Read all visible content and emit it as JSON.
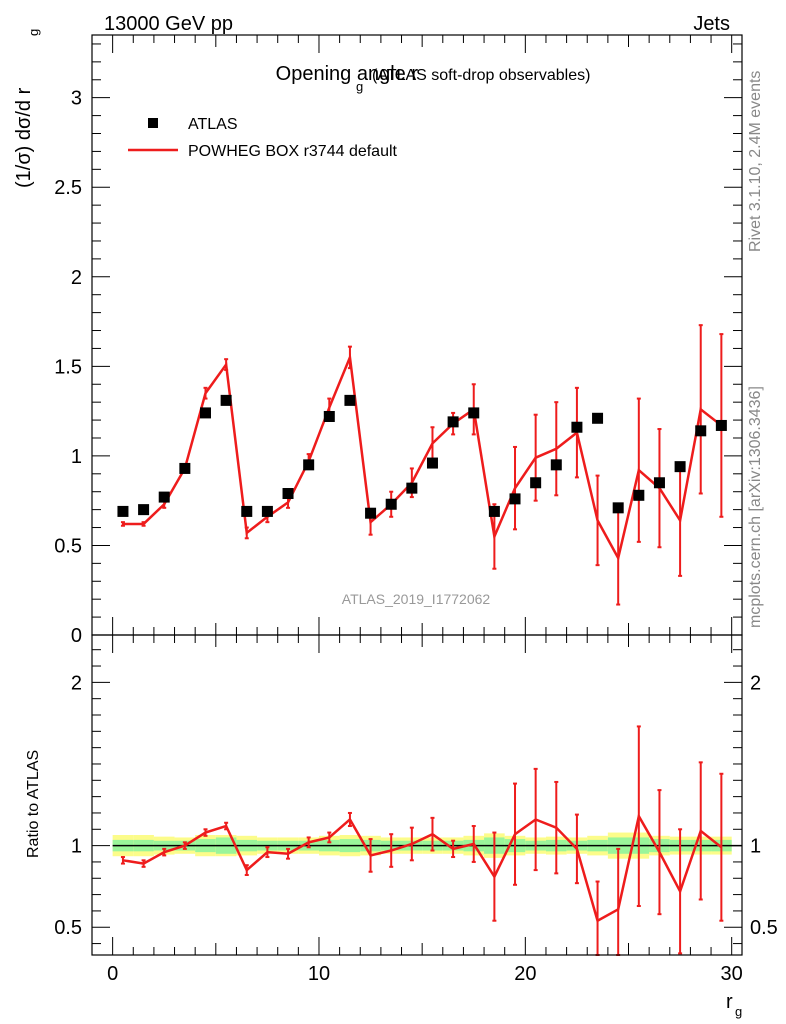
{
  "header": {
    "energy_label": "13000 GeV pp",
    "process_label": "Jets"
  },
  "side_labels": {
    "rivet": "Rivet 3.1.10,  2.4M events",
    "mcplots": "mcplots.cern.ch [arXiv:1306.3436]"
  },
  "chart_data": [
    {
      "type": "scatter",
      "title": "Opening angle r",
      "title_subscript": "g",
      "subtitle": "(ATLAS soft-drop observables)",
      "analysis_label": "ATLAS_2019_I1772062",
      "ylabel": "(1/σ) dσ/d r",
      "ylabel_subscript": "g",
      "xlim": [
        -1,
        30.5
      ],
      "ylim": [
        0,
        3.35
      ],
      "yticks": [
        {
          "value": 0,
          "label": "0"
        },
        {
          "value": 0.5,
          "label": "0.5"
        },
        {
          "value": 1,
          "label": "1"
        },
        {
          "value": 1.5,
          "label": "1.5"
        },
        {
          "value": 2,
          "label": "2"
        },
        {
          "value": 2.5,
          "label": "2.5"
        },
        {
          "value": 3,
          "label": "3"
        }
      ],
      "legend_position": "top-left",
      "series": [
        {
          "name": "ATLAS",
          "style": "markers",
          "color": "#000000",
          "x": [
            0.5,
            1.5,
            2.5,
            3.5,
            4.5,
            5.5,
            6.5,
            7.5,
            8.5,
            9.5,
            10.5,
            11.5,
            12.5,
            13.5,
            14.5,
            15.5,
            16.5,
            17.5,
            18.5,
            19.5,
            20.5,
            21.5,
            22.5,
            23.5,
            24.5,
            25.5,
            26.5,
            27.5,
            28.5,
            29.5
          ],
          "y": [
            0.69,
            0.7,
            0.77,
            0.93,
            1.24,
            1.31,
            0.69,
            0.69,
            0.79,
            0.95,
            1.22,
            1.31,
            0.68,
            0.73,
            0.82,
            0.96,
            1.19,
            1.24,
            0.69,
            0.76,
            0.85,
            0.95,
            1.16,
            1.21,
            0.71,
            0.78,
            0.85,
            0.94,
            1.14,
            1.17
          ]
        },
        {
          "name": "POWHEG BOX r3744 default",
          "style": "line",
          "color": "#ee1c1c",
          "x": [
            0.5,
            1.5,
            2.5,
            3.5,
            4.5,
            5.5,
            6.5,
            7.5,
            8.5,
            9.5,
            10.5,
            11.5,
            12.5,
            13.5,
            14.5,
            15.5,
            16.5,
            17.5,
            18.5,
            19.5,
            20.5,
            21.5,
            22.5,
            23.5,
            24.5,
            25.5,
            26.5,
            27.5,
            28.5,
            29.5
          ],
          "y": [
            0.62,
            0.62,
            0.73,
            0.93,
            1.35,
            1.51,
            0.57,
            0.66,
            0.74,
            0.97,
            1.27,
            1.55,
            0.63,
            0.73,
            0.85,
            1.07,
            1.18,
            1.26,
            0.55,
            0.82,
            0.99,
            1.04,
            1.13,
            0.64,
            0.43,
            0.92,
            0.82,
            0.64,
            1.26,
            1.17
          ],
          "err": [
            0.01,
            0.01,
            0.02,
            0.02,
            0.03,
            0.03,
            0.03,
            0.03,
            0.03,
            0.04,
            0.05,
            0.06,
            0.07,
            0.07,
            0.08,
            0.09,
            0.06,
            0.14,
            0.18,
            0.23,
            0.24,
            0.26,
            0.25,
            0.25,
            0.26,
            0.4,
            0.33,
            0.31,
            0.47,
            0.51
          ]
        }
      ]
    },
    {
      "type": "line",
      "ylabel": "Ratio to ATLAS",
      "xlabel": "r",
      "xlabel_subscript": "g",
      "xlim": [
        -1,
        30.5
      ],
      "ylim": [
        0.33,
        2.29
      ],
      "xticks": [
        {
          "value": 0,
          "label": "0"
        },
        {
          "value": 10,
          "label": "10"
        },
        {
          "value": 20,
          "label": "20"
        },
        {
          "value": 30,
          "label": "30"
        }
      ],
      "yticks": [
        {
          "value": 0.5,
          "label": "0.5"
        },
        {
          "value": 1,
          "label": "1"
        },
        {
          "value": 2,
          "label": "2"
        }
      ],
      "band_colors": {
        "inner": "#9af59a",
        "outer": "#fcfc8a"
      },
      "reference_line": 1,
      "bins": [
        0,
        1,
        2,
        3,
        4,
        5,
        6,
        7,
        8,
        9,
        10,
        11,
        12,
        13,
        14,
        15,
        16,
        17,
        18,
        19,
        20,
        21,
        22,
        23,
        24,
        25,
        26,
        27,
        28,
        29,
        30
      ],
      "band_inner": [
        0.035,
        0.035,
        0.03,
        0.03,
        0.04,
        0.05,
        0.035,
        0.03,
        0.03,
        0.03,
        0.035,
        0.04,
        0.035,
        0.03,
        0.03,
        0.03,
        0.03,
        0.035,
        0.05,
        0.04,
        0.03,
        0.035,
        0.03,
        0.035,
        0.05,
        0.05,
        0.04,
        0.035,
        0.035,
        0.035
      ],
      "band_outer": [
        0.065,
        0.065,
        0.055,
        0.05,
        0.065,
        0.065,
        0.06,
        0.05,
        0.05,
        0.05,
        0.06,
        0.065,
        0.06,
        0.05,
        0.05,
        0.05,
        0.05,
        0.06,
        0.075,
        0.06,
        0.05,
        0.055,
        0.05,
        0.06,
        0.08,
        0.08,
        0.06,
        0.055,
        0.055,
        0.055
      ],
      "series": [
        {
          "name": "POWHEG BOX r3744 default",
          "color": "#ee1c1c",
          "x": [
            0.5,
            1.5,
            2.5,
            3.5,
            4.5,
            5.5,
            6.5,
            7.5,
            8.5,
            9.5,
            10.5,
            11.5,
            12.5,
            13.5,
            14.5,
            15.5,
            16.5,
            17.5,
            18.5,
            19.5,
            20.5,
            21.5,
            22.5,
            23.5,
            24.5,
            25.5,
            26.5,
            27.5,
            28.5,
            29.5
          ],
          "y": [
            0.91,
            0.89,
            0.96,
            1.0,
            1.08,
            1.12,
            0.85,
            0.96,
            0.95,
            1.02,
            1.05,
            1.16,
            0.94,
            0.97,
            1.01,
            1.07,
            0.98,
            1.01,
            0.81,
            1.07,
            1.16,
            1.11,
            0.98,
            0.54,
            0.61,
            1.18,
            0.96,
            0.72,
            1.09,
            0.99
          ],
          "err": [
            0.02,
            0.02,
            0.02,
            0.02,
            0.02,
            0.02,
            0.03,
            0.03,
            0.03,
            0.03,
            0.03,
            0.04,
            0.1,
            0.1,
            0.1,
            0.1,
            0.05,
            0.11,
            0.27,
            0.31,
            0.31,
            0.28,
            0.21,
            0.24,
            0.37,
            0.55,
            0.38,
            0.38,
            0.42,
            0.45
          ]
        }
      ]
    }
  ]
}
